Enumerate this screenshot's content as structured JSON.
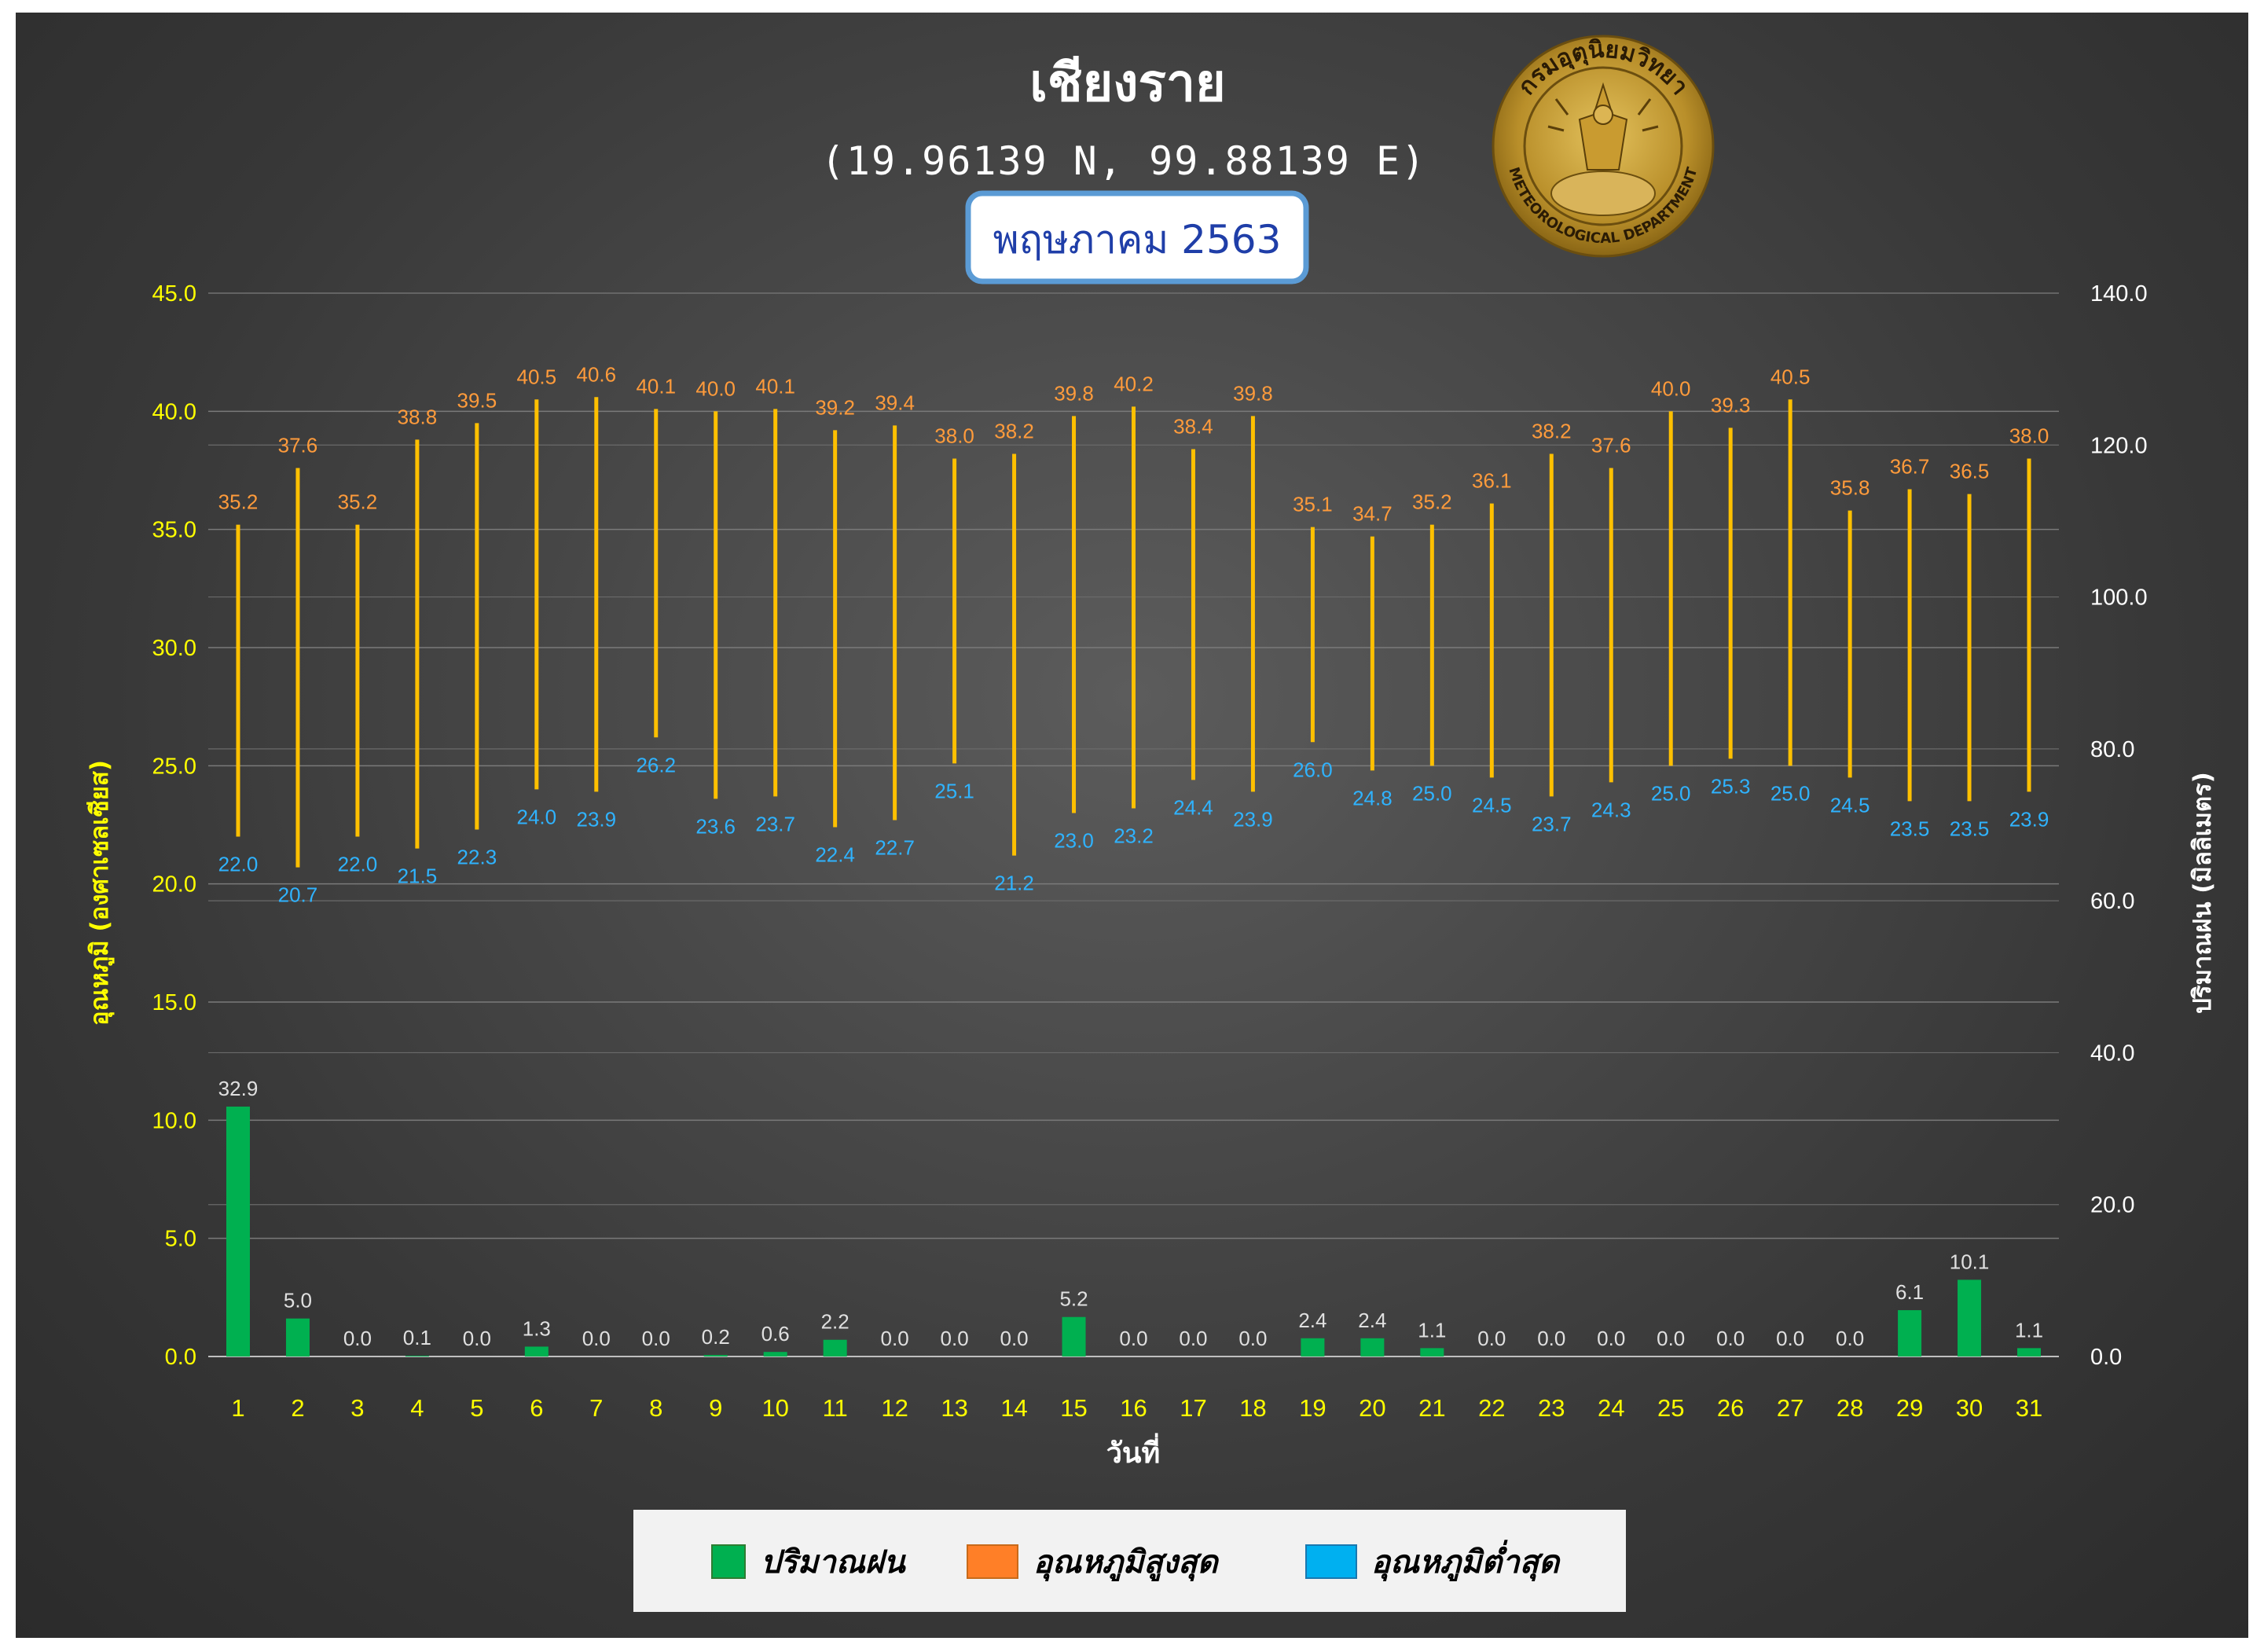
{
  "title": "เชียงราย",
  "subtitle": "(19.96139 N, 99.88139 E)",
  "period": "พฤษภาคม 2563",
  "logo_text": {
    "top": "กรมอุตุนิยมวิทยา",
    "bottom": "METEOROLOGICAL DEPARTMENT"
  },
  "colors": {
    "background": "#3a3a3a",
    "rain": "#00b050",
    "max": "#ff7f27",
    "min": "#00b0f0",
    "range_line": "#ffc000",
    "left_axis": "#ffff00"
  },
  "chart_data": {
    "type": "bar",
    "xlabel": "วันที่",
    "ylabel_left": "อุณหภูมิ (องศาเซลเซียส)",
    "ylabel_right": "ปริมาณฝน (มิลลิเมตร)",
    "ylim_left": [
      0,
      45
    ],
    "ylim_right": [
      0,
      140
    ],
    "yticks_left": [
      "0.0",
      "5.0",
      "10.0",
      "15.0",
      "20.0",
      "25.0",
      "30.0",
      "35.0",
      "40.0",
      "45.0"
    ],
    "yticks_right": [
      "0.0",
      "20.0",
      "40.0",
      "60.0",
      "80.0",
      "100.0",
      "120.0",
      "140.0"
    ],
    "categories": [
      "1",
      "2",
      "3",
      "4",
      "5",
      "6",
      "7",
      "8",
      "9",
      "10",
      "11",
      "12",
      "13",
      "14",
      "15",
      "16",
      "17",
      "18",
      "19",
      "20",
      "21",
      "22",
      "23",
      "24",
      "25",
      "26",
      "27",
      "28",
      "29",
      "30",
      "31"
    ],
    "series": [
      {
        "name": "ปริมาณฝน",
        "axis": "right",
        "values": [
          32.9,
          5.0,
          0.0,
          0.1,
          0.0,
          1.3,
          0.0,
          0.0,
          0.2,
          0.6,
          2.2,
          0.0,
          0.0,
          0.0,
          5.2,
          0.0,
          0.0,
          0.0,
          2.4,
          2.4,
          1.1,
          0.0,
          0.0,
          0.0,
          0.0,
          0.0,
          0.0,
          0.0,
          6.1,
          10.1,
          1.1
        ]
      },
      {
        "name": "อุณหภูมิสูงสุด",
        "axis": "left",
        "values": [
          35.2,
          37.6,
          35.2,
          38.8,
          39.5,
          40.5,
          40.6,
          40.1,
          40.0,
          40.1,
          39.2,
          39.4,
          38.0,
          38.2,
          39.8,
          40.2,
          38.4,
          39.8,
          35.1,
          34.7,
          35.2,
          36.1,
          38.2,
          37.6,
          40.0,
          39.3,
          40.5,
          35.8,
          36.7,
          36.5,
          38.0
        ]
      },
      {
        "name": "อุณหภูมิต่ำสุด",
        "axis": "left",
        "values": [
          22.0,
          20.7,
          22.0,
          21.5,
          22.3,
          24.0,
          23.9,
          26.2,
          23.6,
          23.7,
          22.4,
          22.7,
          25.1,
          21.2,
          23.0,
          23.2,
          24.4,
          23.9,
          26.0,
          24.8,
          25.0,
          24.5,
          23.7,
          24.3,
          25.0,
          25.3,
          25.0,
          24.5,
          23.5,
          23.5,
          23.9
        ]
      }
    ],
    "legend": [
      "ปริมาณฝน",
      "อุณหภูมิสูงสุด",
      "อุณหภูมิต่ำสุด"
    ],
    "legend_position": "bottom",
    "grid": true
  }
}
